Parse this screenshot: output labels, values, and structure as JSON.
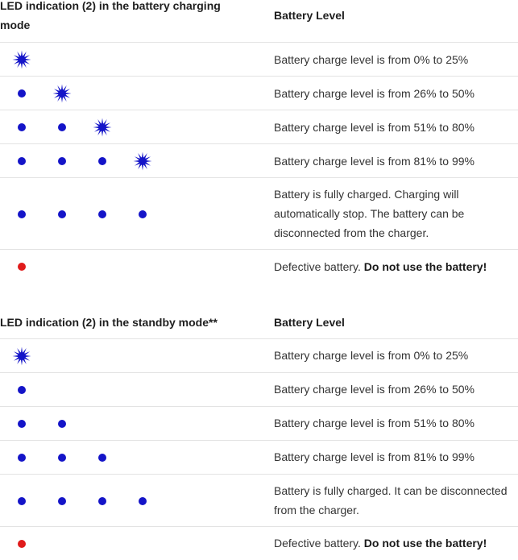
{
  "charging": {
    "header_left": "LED indication (2) in the battery charging mode",
    "header_right": "Battery Level",
    "rows": [
      {
        "leds": [
          "flash"
        ],
        "text": "Battery charge level is from 0% to 25%"
      },
      {
        "leds": [
          "on",
          "flash"
        ],
        "text": "Battery charge level is from 26% to 50%"
      },
      {
        "leds": [
          "on",
          "on",
          "flash"
        ],
        "text": "Battery charge level is from 51% to 80%"
      },
      {
        "leds": [
          "on",
          "on",
          "on",
          "flash"
        ],
        "text": "Battery charge level is from 81% to 99%"
      },
      {
        "leds": [
          "on",
          "on",
          "on",
          "on"
        ],
        "text": "Battery is fully charged. Charging will automatically stop. The battery can be disconnected from the charger."
      },
      {
        "leds": [
          "red"
        ],
        "text": "Defective battery.",
        "bold": "Do not use the battery!"
      }
    ]
  },
  "standby": {
    "header_left": "LED indication (2) in the standby mode**",
    "header_right": "Battery Level",
    "rows": [
      {
        "leds": [
          "flash"
        ],
        "text": "Battery charge level is from 0% to 25%"
      },
      {
        "leds": [
          "on"
        ],
        "text": "Battery charge level is from 26% to 50%"
      },
      {
        "leds": [
          "on",
          "on"
        ],
        "text": "Battery charge level is from 51% to 80%"
      },
      {
        "leds": [
          "on",
          "on",
          "on"
        ],
        "text": "Battery charge level is from 81% to 99%"
      },
      {
        "leds": [
          "on",
          "on",
          "on",
          "on"
        ],
        "text": "Battery is fully charged. It can be disconnected from the charger."
      },
      {
        "leds": [
          "red"
        ],
        "text": "Defective battery.",
        "bold": "Do not use the battery!"
      }
    ]
  },
  "colors": {
    "led_on": "#1414c8",
    "led_red": "#e01b1b",
    "led_flash": "#1414c8"
  },
  "icons": {
    "on": "blue-led-dot-icon",
    "flash": "blue-led-flashing-icon",
    "red": "red-led-dot-icon"
  }
}
